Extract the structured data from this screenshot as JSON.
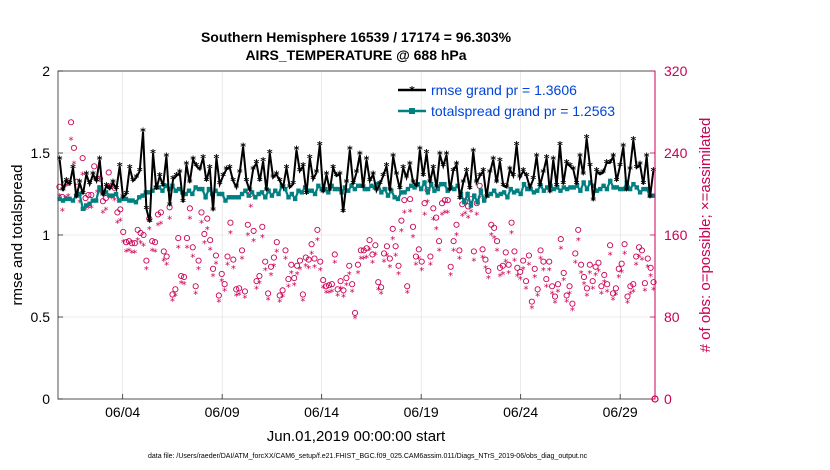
{
  "chart_data": {
    "type": "line",
    "title_line1": "Southern Hemisphere 16539 / 17174 = 96.303%",
    "title_line2": "AIRS_TEMPERATURE @ 688 hPa",
    "xlabel": "Jun.01,2019 00:00:00 start",
    "ylabel_left": "rmse and totalspread",
    "ylabel_right": "# of obs: o=possible; ×=assimilated",
    "left_axis": {
      "range": [
        0,
        2
      ],
      "ticks": [
        "0",
        "0.5",
        "1",
        "1.5",
        "2"
      ],
      "tick_values": [
        0,
        0.5,
        1,
        1.5,
        2
      ]
    },
    "right_axis": {
      "range": [
        0,
        320
      ],
      "ticks": [
        "0",
        "80",
        "160",
        "240",
        "320"
      ],
      "tick_values": [
        0,
        80,
        160,
        240,
        320
      ]
    },
    "x_axis": {
      "range": [
        0.75,
        30.75
      ],
      "ticks": [
        "06/04",
        "06/09",
        "06/14",
        "06/19",
        "06/24",
        "06/29"
      ],
      "tick_values": [
        4,
        9,
        14,
        19,
        24,
        29
      ]
    },
    "colors": {
      "rmse": "#000000",
      "spread": "#008080",
      "obs": "#cc0055",
      "legend_text": "#0044dd",
      "grid": "#dddddd"
    },
    "legend": {
      "rmse_label": "rmse grand pr = 1.3606",
      "spread_label": "totalspread grand pr = 1.2563"
    },
    "series": [
      {
        "name": "rmse",
        "values": [
          1.46,
          1.27,
          1.33,
          1.31,
          1.41,
          1.23,
          1.32,
          1.25,
          1.37,
          1.31,
          1.37,
          1.33,
          1.46,
          1.24,
          1.3,
          1.28,
          1.32,
          1.28,
          1.42,
          1.23,
          1.25,
          1.41,
          1.33,
          1.35,
          1.39,
          1.63,
          1.16,
          1.08,
          1.5,
          1.28,
          1.36,
          1.3,
          1.48,
          1.18,
          1.34,
          1.36,
          1.38,
          1.2,
          1.43,
          1.32,
          1.46,
          1.42,
          1.4,
          1.47,
          1.33,
          1.41,
          1.15,
          1.47,
          1.31,
          1.36,
          1.4,
          1.41,
          1.33,
          1.29,
          1.38,
          1.54,
          1.33,
          1.27,
          1.4,
          1.44,
          1.33,
          1.45,
          1.27,
          1.5,
          1.35,
          1.37,
          1.33,
          1.29,
          1.41,
          1.29,
          1.31,
          1.52,
          1.39,
          1.42,
          1.25,
          1.47,
          1.34,
          1.38,
          1.55,
          1.26,
          1.37,
          1.27,
          1.41,
          1.36,
          1.37,
          1.14,
          1.32,
          1.52,
          1.31,
          1.38,
          1.49,
          1.29,
          1.46,
          1.33,
          1.37,
          1.27,
          1.31,
          1.36,
          1.42,
          1.27,
          1.48,
          1.37,
          1.28,
          1.41,
          1.35,
          1.43,
          1.32,
          1.3,
          1.52,
          1.36,
          1.5,
          1.32,
          1.41,
          1.29,
          1.49,
          1.42,
          1.49,
          1.27,
          1.39,
          1.43,
          1.22,
          1.32,
          1.39,
          1.28,
          1.51,
          1.32,
          1.36,
          1.39,
          1.23,
          1.38,
          1.46,
          1.32,
          1.45,
          1.3,
          1.29,
          1.4,
          1.36,
          1.55,
          1.35,
          1.39,
          1.36,
          1.29,
          1.34,
          1.48,
          1.3,
          1.38,
          1.47,
          1.26,
          1.46,
          1.3,
          1.55,
          1.31,
          1.44,
          1.42,
          1.4,
          1.31,
          1.48,
          1.37,
          1.59,
          1.42,
          1.21,
          1.39,
          1.37,
          1.38,
          1.44,
          1.44,
          1.48,
          1.33,
          1.42,
          1.54,
          1.27,
          1.4,
          1.58,
          1.41,
          1.43,
          1.31,
          1.48,
          1.23,
          1.39
        ]
      },
      {
        "name": "totalspread",
        "values": [
          1.22,
          1.21,
          1.22,
          1.22,
          1.21,
          1.24,
          1.25,
          1.16,
          1.18,
          1.19,
          1.21,
          1.21,
          1.29,
          1.26,
          1.26,
          1.24,
          1.24,
          1.25,
          1.21,
          1.22,
          1.22,
          1.21,
          1.21,
          1.2,
          1.23,
          1.24,
          1.26,
          1.26,
          1.27,
          1.29,
          1.29,
          1.27,
          1.3,
          1.28,
          1.3,
          1.27,
          1.28,
          1.26,
          1.25,
          1.27,
          1.25,
          1.29,
          1.28,
          1.28,
          1.23,
          1.28,
          1.25,
          1.27,
          1.25,
          1.25,
          1.21,
          1.23,
          1.23,
          1.23,
          1.23,
          1.25,
          1.27,
          1.24,
          1.26,
          1.23,
          1.25,
          1.26,
          1.23,
          1.27,
          1.24,
          1.27,
          1.25,
          1.3,
          1.28,
          1.23,
          1.25,
          1.22,
          1.27,
          1.26,
          1.29,
          1.27,
          1.27,
          1.25,
          1.3,
          1.28,
          1.28,
          1.26,
          1.3,
          1.28,
          1.28,
          1.26,
          1.29,
          1.27,
          1.3,
          1.28,
          1.3,
          1.3,
          1.28,
          1.28,
          1.3,
          1.29,
          1.31,
          1.26,
          1.28,
          1.24,
          1.27,
          1.23,
          1.22,
          1.26,
          1.26,
          1.28,
          1.3,
          1.29,
          1.31,
          1.28,
          1.32,
          1.26,
          1.31,
          1.27,
          1.28,
          1.31,
          1.31,
          1.27,
          1.29,
          1.28,
          1.3,
          1.25,
          1.2,
          1.25,
          1.18,
          1.24,
          1.2,
          1.27,
          1.21,
          1.24,
          1.25,
          1.27,
          1.24,
          1.25,
          1.26,
          1.23,
          1.28,
          1.26,
          1.27,
          1.25,
          1.31,
          1.28,
          1.28,
          1.26,
          1.27,
          1.3,
          1.27,
          1.29,
          1.3,
          1.28,
          1.29,
          1.27,
          1.29,
          1.28,
          1.29,
          1.29,
          1.3,
          1.27,
          1.32,
          1.28,
          1.32,
          1.3,
          1.27,
          1.28,
          1.3,
          1.28,
          1.33,
          1.29,
          1.29,
          1.28,
          1.28,
          1.32,
          1.28,
          1.31,
          1.29,
          1.26,
          1.28,
          1.28,
          1.24,
          1.24
        ]
      },
      {
        "name": "obs_possible",
        "values": [
          207,
          197,
          210,
          211,
          270,
          245,
          212,
          204,
          235,
          196,
          199,
          199,
          227,
          215,
          215,
          193,
          196,
          221,
          208,
          206,
          182,
          185,
          163,
          153,
          154,
          152,
          152,
          165,
          162,
          160,
          135,
          176,
          154,
          153,
          180,
          182,
          144,
          139,
          187,
          102,
          107,
          157,
          120,
          119,
          157,
          186,
          148,
          110,
          135,
          182,
          161,
          176,
          155,
          127,
          140,
          101,
          122,
          112,
          139,
          172,
          136,
          107,
          108,
          145,
          105,
          170,
          200,
          164,
          115,
          120,
          168,
          134,
          103,
          129,
          138,
          153,
          101,
          106,
          145,
          117,
          131,
          118,
          130,
          135,
          102,
          138,
          136,
          151,
          137,
          165,
          134,
          116,
          110,
          111,
          112,
          141,
          107,
          115,
          106,
          118,
          130,
          112,
          84,
          131,
          145,
          145,
          147,
          155,
          141,
          150,
          114,
          109,
          142,
          149,
          137,
          166,
          149,
          130,
          174,
          194,
          110,
          195,
          168,
          139,
          146,
          134,
          191,
          204,
          139,
          186,
          177,
          154,
          191,
          194,
          194,
          129,
          154,
          170,
          145,
          190,
          193,
          188,
          195,
          144,
          191,
          208,
          146,
          136,
          125,
          170,
          167,
          154,
          128,
          130,
          143,
          131,
          172,
          144,
          128,
          124,
          135,
          115,
          140,
          95,
          127,
          107,
          145,
          134,
          117,
          134,
          110,
          100,
          112,
          156,
          123,
          101,
          110,
          93,
          142,
          165,
          131,
          119,
          108,
          131,
          115,
          129,
          133,
          110,
          121,
          112,
          150,
          103,
          108,
          127,
          132,
          151,
          100,
          110,
          112,
          139,
          148,
          145,
          113,
          137,
          128,
          114
        ]
      },
      {
        "name": "obs_assimilated",
        "values": [
          198,
          184,
          196,
          198,
          253,
          230,
          200,
          192,
          219,
          185,
          187,
          187,
          214,
          202,
          202,
          182,
          185,
          208,
          196,
          194,
          172,
          174,
          153,
          144,
          145,
          143,
          143,
          155,
          152,
          150,
          127,
          166,
          145,
          144,
          170,
          171,
          135,
          131,
          176,
          96,
          101,
          148,
          113,
          112,
          148,
          176,
          139,
          103,
          127,
          172,
          152,
          166,
          146,
          120,
          132,
          95,
          115,
          106,
          131,
          162,
          128,
          101,
          102,
          137,
          99,
          160,
          188,
          154,
          108,
          113,
          158,
          126,
          97,
          121,
          130,
          144,
          95,
          100,
          137,
          110,
          123,
          111,
          122,
          127,
          96,
          130,
          128,
          142,
          129,
          155,
          126,
          109,
          104,
          104,
          105,
          133,
          101,
          108,
          100,
          111,
          122,
          105,
          79,
          123,
          137,
          137,
          138,
          146,
          133,
          141,
          107,
          103,
          134,
          140,
          129,
          156,
          140,
          122,
          164,
          182,
          104,
          183,
          158,
          131,
          137,
          126,
          180,
          192,
          131,
          175,
          166,
          145,
          180,
          182,
          182,
          121,
          145,
          160,
          137,
          179,
          181,
          177,
          183,
          135,
          180,
          196,
          138,
          128,
          118,
          160,
          157,
          145,
          120,
          122,
          134,
          123,
          162,
          135,
          120,
          117,
          127,
          108,
          131,
          89,
          119,
          101,
          137,
          126,
          110,
          126,
          103,
          94,
          105,
          147,
          116,
          95,
          103,
          87,
          133,
          155,
          123,
          112,
          101,
          123,
          108,
          121,
          125,
          103,
          114,
          105,
          141,
          97,
          102,
          119,
          124,
          142,
          94,
          103,
          105,
          131,
          139,
          136,
          106,
          129,
          120,
          107
        ]
      }
    ]
  },
  "footer": {
    "data_file": "data file: /Users/raeder/DAI/ATM_forcXX/CAM6_setup/f.e21.FHIST_BGC.f09_025.CAM6assim.011/Diags_NTrS_2019-06/obs_diag_output.nc"
  }
}
